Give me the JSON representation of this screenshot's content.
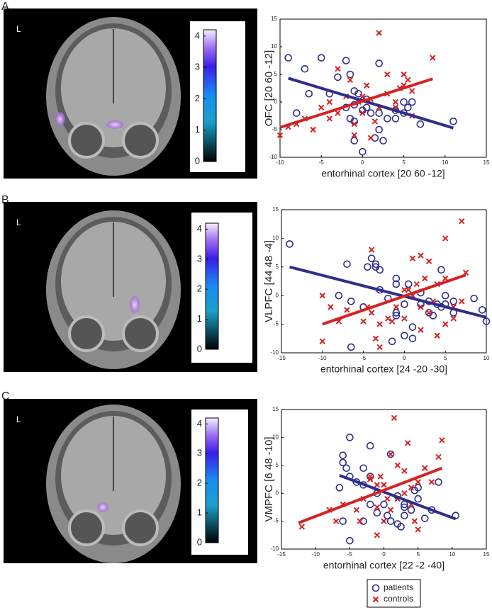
{
  "panels": [
    {
      "label": "A",
      "image_label": "L",
      "colorbar": {
        "lim": [
          0,
          4.2
        ],
        "ticks": [
          0,
          1,
          2,
          3,
          4
        ]
      }
    },
    {
      "label": "B",
      "image_label": "L",
      "colorbar": {
        "lim": [
          0,
          4.2
        ],
        "ticks": [
          0,
          1,
          2,
          3,
          4
        ]
      }
    },
    {
      "label": "C",
      "image_label": "L",
      "colorbar": {
        "lim": [
          0,
          4.2
        ],
        "ticks": [
          0,
          1,
          2,
          3,
          4
        ]
      }
    }
  ],
  "chart_data": [
    {
      "type": "scatter",
      "ylabel": "OFC  [20 60 -12]",
      "xlabel": "entorhinal cortex [20 60 -12]",
      "xlim": [
        -10,
        15
      ],
      "ylim": [
        -10,
        15
      ],
      "xticks": [
        -10,
        -5,
        0,
        5,
        10,
        15
      ],
      "yticks": [
        -10,
        -5,
        0,
        5,
        10,
        15
      ],
      "series": [
        {
          "name": "patients",
          "color": "#2e2e8c",
          "marker": "o",
          "x": [
            -9,
            -7,
            -5,
            -3,
            -6.5,
            -8,
            -4,
            -2,
            -1.5,
            -1,
            -0.5,
            -1,
            -2,
            -1.5,
            -1,
            0,
            0.5,
            0.5,
            1,
            2,
            2,
            1.5,
            2.5,
            0,
            3,
            4,
            5,
            5.5,
            5,
            6,
            7,
            11,
            -1,
            4,
            2
          ],
          "values": [
            8,
            6,
            8,
            4.5,
            1.5,
            -2,
            1.5,
            7.5,
            5,
            2,
            1.5,
            -0.5,
            -1,
            -3,
            -3.5,
            -1.5,
            -1,
            0.5,
            -2,
            -2,
            -5,
            -6.5,
            -7,
            -9,
            -3,
            -3,
            -2,
            -1,
            0,
            0,
            -4,
            -3.5,
            -7,
            -1.5,
            7
          ]
        },
        {
          "name": "controls",
          "color": "#d42222",
          "marker": "x",
          "x": [
            -10,
            -9,
            -8,
            -7,
            -6,
            -5,
            -4,
            -3,
            -3,
            -2,
            -1.5,
            -1,
            -0.5,
            0,
            0,
            0.5,
            1,
            1,
            1.5,
            2,
            2,
            3,
            3,
            4,
            4,
            4.5,
            5,
            5,
            5.5,
            6,
            6,
            8.5,
            -4,
            -1
          ],
          "values": [
            -6,
            -4.5,
            -4,
            -3,
            -5,
            -1,
            0,
            -2,
            6,
            1,
            4,
            -4,
            0,
            -2,
            1,
            3,
            0.5,
            -6.5,
            -3.5,
            12.5,
            -1,
            1.5,
            5,
            0,
            -1,
            2.5,
            3,
            5,
            4,
            -2.5,
            2,
            8,
            -3,
            -6
          ]
        }
      ],
      "fits": [
        {
          "color": "#2e2e8c",
          "x": [
            -9,
            11
          ],
          "y": [
            4.3,
            -4.7
          ]
        },
        {
          "color": "#d42222",
          "x": [
            -10,
            8.5
          ],
          "y": [
            -4.6,
            4.2
          ]
        }
      ]
    },
    {
      "type": "scatter",
      "ylabel": "VLPFC  [44 48 -4]",
      "xlabel": "entorhinal cortex [24 -20 -30]",
      "xlim": [
        -15,
        10
      ],
      "ylim": [
        -10,
        15
      ],
      "xticks": [
        -15,
        -10,
        -5,
        0,
        5,
        10
      ],
      "yticks": [
        -10,
        -5,
        0,
        5,
        10,
        15
      ],
      "series": [
        {
          "color": "#2e2e8c",
          "marker": "o",
          "x": [
            -14,
            -8,
            -7,
            -6.5,
            -5,
            -4.5,
            -4,
            -3.5,
            -3.5,
            -3,
            -3,
            -2,
            -1,
            -1,
            -1,
            -1,
            0,
            0,
            0.5,
            1,
            1,
            2,
            2,
            3,
            3,
            3.5,
            4,
            4.5,
            4.5,
            5,
            5,
            6,
            6,
            8.5,
            9.5,
            10,
            -6.5,
            -1.5
          ],
          "values": [
            9,
            0,
            5.5,
            -1,
            -2,
            5,
            6.5,
            5.5,
            5,
            4.5,
            1,
            -0.5,
            3,
            2,
            -3,
            -3.5,
            -1.5,
            -7,
            2,
            -5.5,
            -7.5,
            -1.5,
            0.5,
            -1,
            -3,
            -3.5,
            -1.5,
            -2,
            4.5,
            -1.5,
            0,
            -3,
            -1,
            -0.5,
            -2.5,
            -4.5,
            -9,
            -8
          ]
        },
        {
          "color": "#d42222",
          "marker": "x",
          "x": [
            -10,
            -10,
            -9,
            -8,
            -7,
            -5,
            -4.5,
            -4,
            -4,
            -3.5,
            -3,
            -3,
            -2,
            -1,
            0,
            0,
            0.5,
            1,
            1,
            1.5,
            2,
            2,
            2.5,
            3,
            3,
            3.5,
            4,
            4,
            5,
            5,
            5,
            6,
            6,
            7,
            7,
            7.5,
            -1.5,
            2
          ],
          "values": [
            -8,
            0,
            -2,
            -4.5,
            -2.5,
            -4.5,
            -2,
            -3,
            8,
            -7.5,
            -9,
            -5,
            -4,
            -2,
            -4,
            1,
            1,
            6.5,
            0,
            2,
            -2,
            7,
            3,
            6,
            -3,
            -1,
            2,
            -7,
            -5,
            10,
            3,
            -2,
            -4,
            -1,
            13,
            4,
            -4.5,
            -6
          ]
        }
      ],
      "fits": [
        {
          "color": "#2e2e8c",
          "x": [
            -14,
            10
          ],
          "y": [
            5,
            -3.8
          ]
        },
        {
          "color": "#d42222",
          "x": [
            -10,
            7.5
          ],
          "y": [
            -5,
            3.6
          ]
        }
      ]
    },
    {
      "type": "scatter",
      "ylabel": "VMPFC  [6 48 -10]",
      "xlabel": "entorhinal cortex [22 -2 -40]",
      "xlim": [
        -15,
        15
      ],
      "ylim": [
        -10,
        15
      ],
      "xticks": [
        -15,
        -10,
        -5,
        0,
        5,
        10,
        15
      ],
      "yticks": [
        -10,
        -5,
        0,
        5,
        10,
        15
      ],
      "series": [
        {
          "color": "#2e2e8c",
          "marker": "o",
          "x": [
            -6,
            -6,
            -5.5,
            -5,
            -5,
            -6.5,
            -6,
            -4,
            -3,
            -3,
            -3,
            -2,
            -2,
            -2,
            -1,
            -1,
            0,
            0.5,
            1,
            1,
            2,
            2.5,
            2,
            3,
            3,
            4,
            4.5,
            5,
            5,
            6,
            7,
            8,
            10.5,
            -5,
            3
          ],
          "values": [
            6.8,
            5.5,
            4.5,
            10,
            3,
            1,
            -5,
            2,
            1.5,
            4.5,
            -5,
            8.5,
            3,
            -2,
            0,
            -3.5,
            -2,
            -4,
            7,
            -5,
            -5.5,
            -6,
            -0.5,
            -2.5,
            -4,
            -3,
            0.5,
            1,
            -1,
            -4.5,
            -3,
            2,
            -4,
            -8.5,
            -2
          ]
        },
        {
          "color": "#d42222",
          "marker": "x",
          "x": [
            -12,
            -8,
            -7,
            -6,
            -4,
            -3,
            -2,
            -2,
            -1,
            -1,
            -0.5,
            0,
            0,
            0.5,
            1,
            1.5,
            2,
            2,
            3,
            3,
            4,
            4,
            4.5,
            5,
            5,
            6,
            7,
            8,
            8.5,
            -1,
            3.5,
            1,
            -3.5
          ],
          "values": [
            -6,
            -3,
            -5,
            -2,
            -3,
            -1,
            2.5,
            3,
            1.5,
            -2.5,
            3,
            1.5,
            -5,
            -1,
            7,
            13.5,
            5,
            -1,
            0,
            4,
            1,
            -2,
            -5,
            -6.5,
            2,
            4.5,
            2,
            6.5,
            9.5,
            -7.5,
            9,
            -3,
            -5
          ]
        }
      ],
      "fits": [
        {
          "color": "#2e2e8c",
          "x": [
            -6.5,
            10.5
          ],
          "y": [
            3.2,
            -4.6
          ]
        },
        {
          "color": "#d42222",
          "x": [
            -12.5,
            8.5
          ],
          "y": [
            -5.3,
            4.5
          ]
        }
      ]
    }
  ]
}
